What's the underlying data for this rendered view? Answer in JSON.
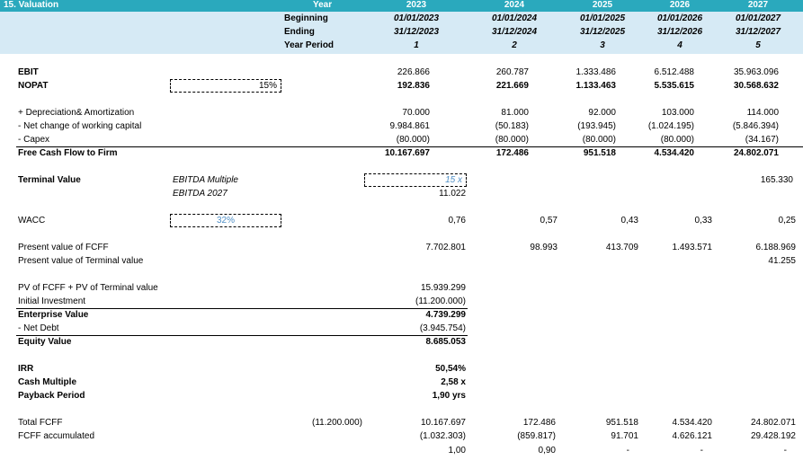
{
  "header": {
    "section": "15. Valuation",
    "year_label": "Year",
    "beginning_label": "Beginning",
    "ending_label": "Ending",
    "period_label": "Year Period",
    "years": [
      "2023",
      "2024",
      "2025",
      "2026",
      "2027"
    ],
    "beginning": [
      "01/01/2023",
      "01/01/2024",
      "01/01/2025",
      "01/01/2026",
      "01/01/2027"
    ],
    "ending": [
      "31/12/2023",
      "31/12/2024",
      "31/12/2025",
      "31/12/2026",
      "31/12/2027"
    ],
    "periods": [
      "1",
      "2",
      "3",
      "4",
      "5"
    ]
  },
  "ebit": {
    "label": "EBIT",
    "values": [
      "226.866",
      "260.787",
      "1.333.486",
      "6.512.488",
      "35.963.096"
    ]
  },
  "nopat": {
    "label": "NOPAT",
    "tax_input": "15%",
    "values": [
      "192.836",
      "221.669",
      "1.133.463",
      "5.535.615",
      "30.568.632"
    ]
  },
  "da": {
    "label": "+ Depreciation& Amortization",
    "values": [
      "70.000",
      "81.000",
      "92.000",
      "103.000",
      "114.000"
    ]
  },
  "nwc": {
    "label": "- Net change of working capital",
    "values": [
      "9.984.861",
      "(50.183)",
      "(193.945)",
      "(1.024.195)",
      "(5.846.394)"
    ]
  },
  "capex": {
    "label": "- Capex",
    "values": [
      "(80.000)",
      "(80.000)",
      "(80.000)",
      "(80.000)",
      "(34.167)"
    ]
  },
  "fcff": {
    "label": "Free Cash Flow to Firm",
    "values": [
      "10.167.697",
      "172.486",
      "951.518",
      "4.534.420",
      "24.802.071"
    ]
  },
  "terminal": {
    "label": "Terminal Value",
    "method_label": "EBITDA Multiple",
    "ebitda_label": "EBITDA 2027",
    "multiple_input": "15 x",
    "ebitda_value": "11.022",
    "value_2027": "165.330"
  },
  "wacc": {
    "label": "WACC",
    "input": "32%",
    "values": [
      "0,76",
      "0,57",
      "0,43",
      "0,33",
      "0,25"
    ]
  },
  "pv_fcff": {
    "label": "Present value of FCFF",
    "values": [
      "7.702.801",
      "98.993",
      "413.709",
      "1.493.571",
      "6.188.969"
    ]
  },
  "pv_tv": {
    "label": "Present value of Terminal value",
    "value_2027": "41.255"
  },
  "summary": {
    "pv_sum_label": "PV of FCFF + PV of Terminal value",
    "pv_sum": "15.939.299",
    "initial_label": "Initial Investment",
    "initial": "(11.200.000)",
    "ev_label": "Enterprise Value",
    "ev": "4.739.299",
    "net_debt_label": "- Net Debt",
    "net_debt": "(3.945.754)",
    "equity_label": "Equity Value",
    "equity": "8.685.053"
  },
  "returns": {
    "irr_label": "IRR",
    "irr": "50,54%",
    "cash_multiple_label": "Cash Multiple",
    "cash_multiple": "2,58 x",
    "payback_label": "Payback Period",
    "payback": "1,90 yrs"
  },
  "total_fcff": {
    "label": "Total FCFF",
    "initial": "(11.200.000)",
    "values": [
      "10.167.697",
      "172.486",
      "951.518",
      "4.534.420",
      "24.802.071"
    ]
  },
  "fcff_accum": {
    "label": "FCFF accumulated",
    "values": [
      "(1.032.303)",
      "(859.817)",
      "91.701",
      "4.626.121",
      "29.428.192"
    ]
  },
  "payback_row": {
    "values": [
      "1,00",
      "0,90",
      "-",
      "-",
      "-"
    ]
  },
  "colors": {
    "header_band": "#2aa9bd",
    "sub_band": "#d6eaf5",
    "input_text": "#4f8fc6"
  }
}
